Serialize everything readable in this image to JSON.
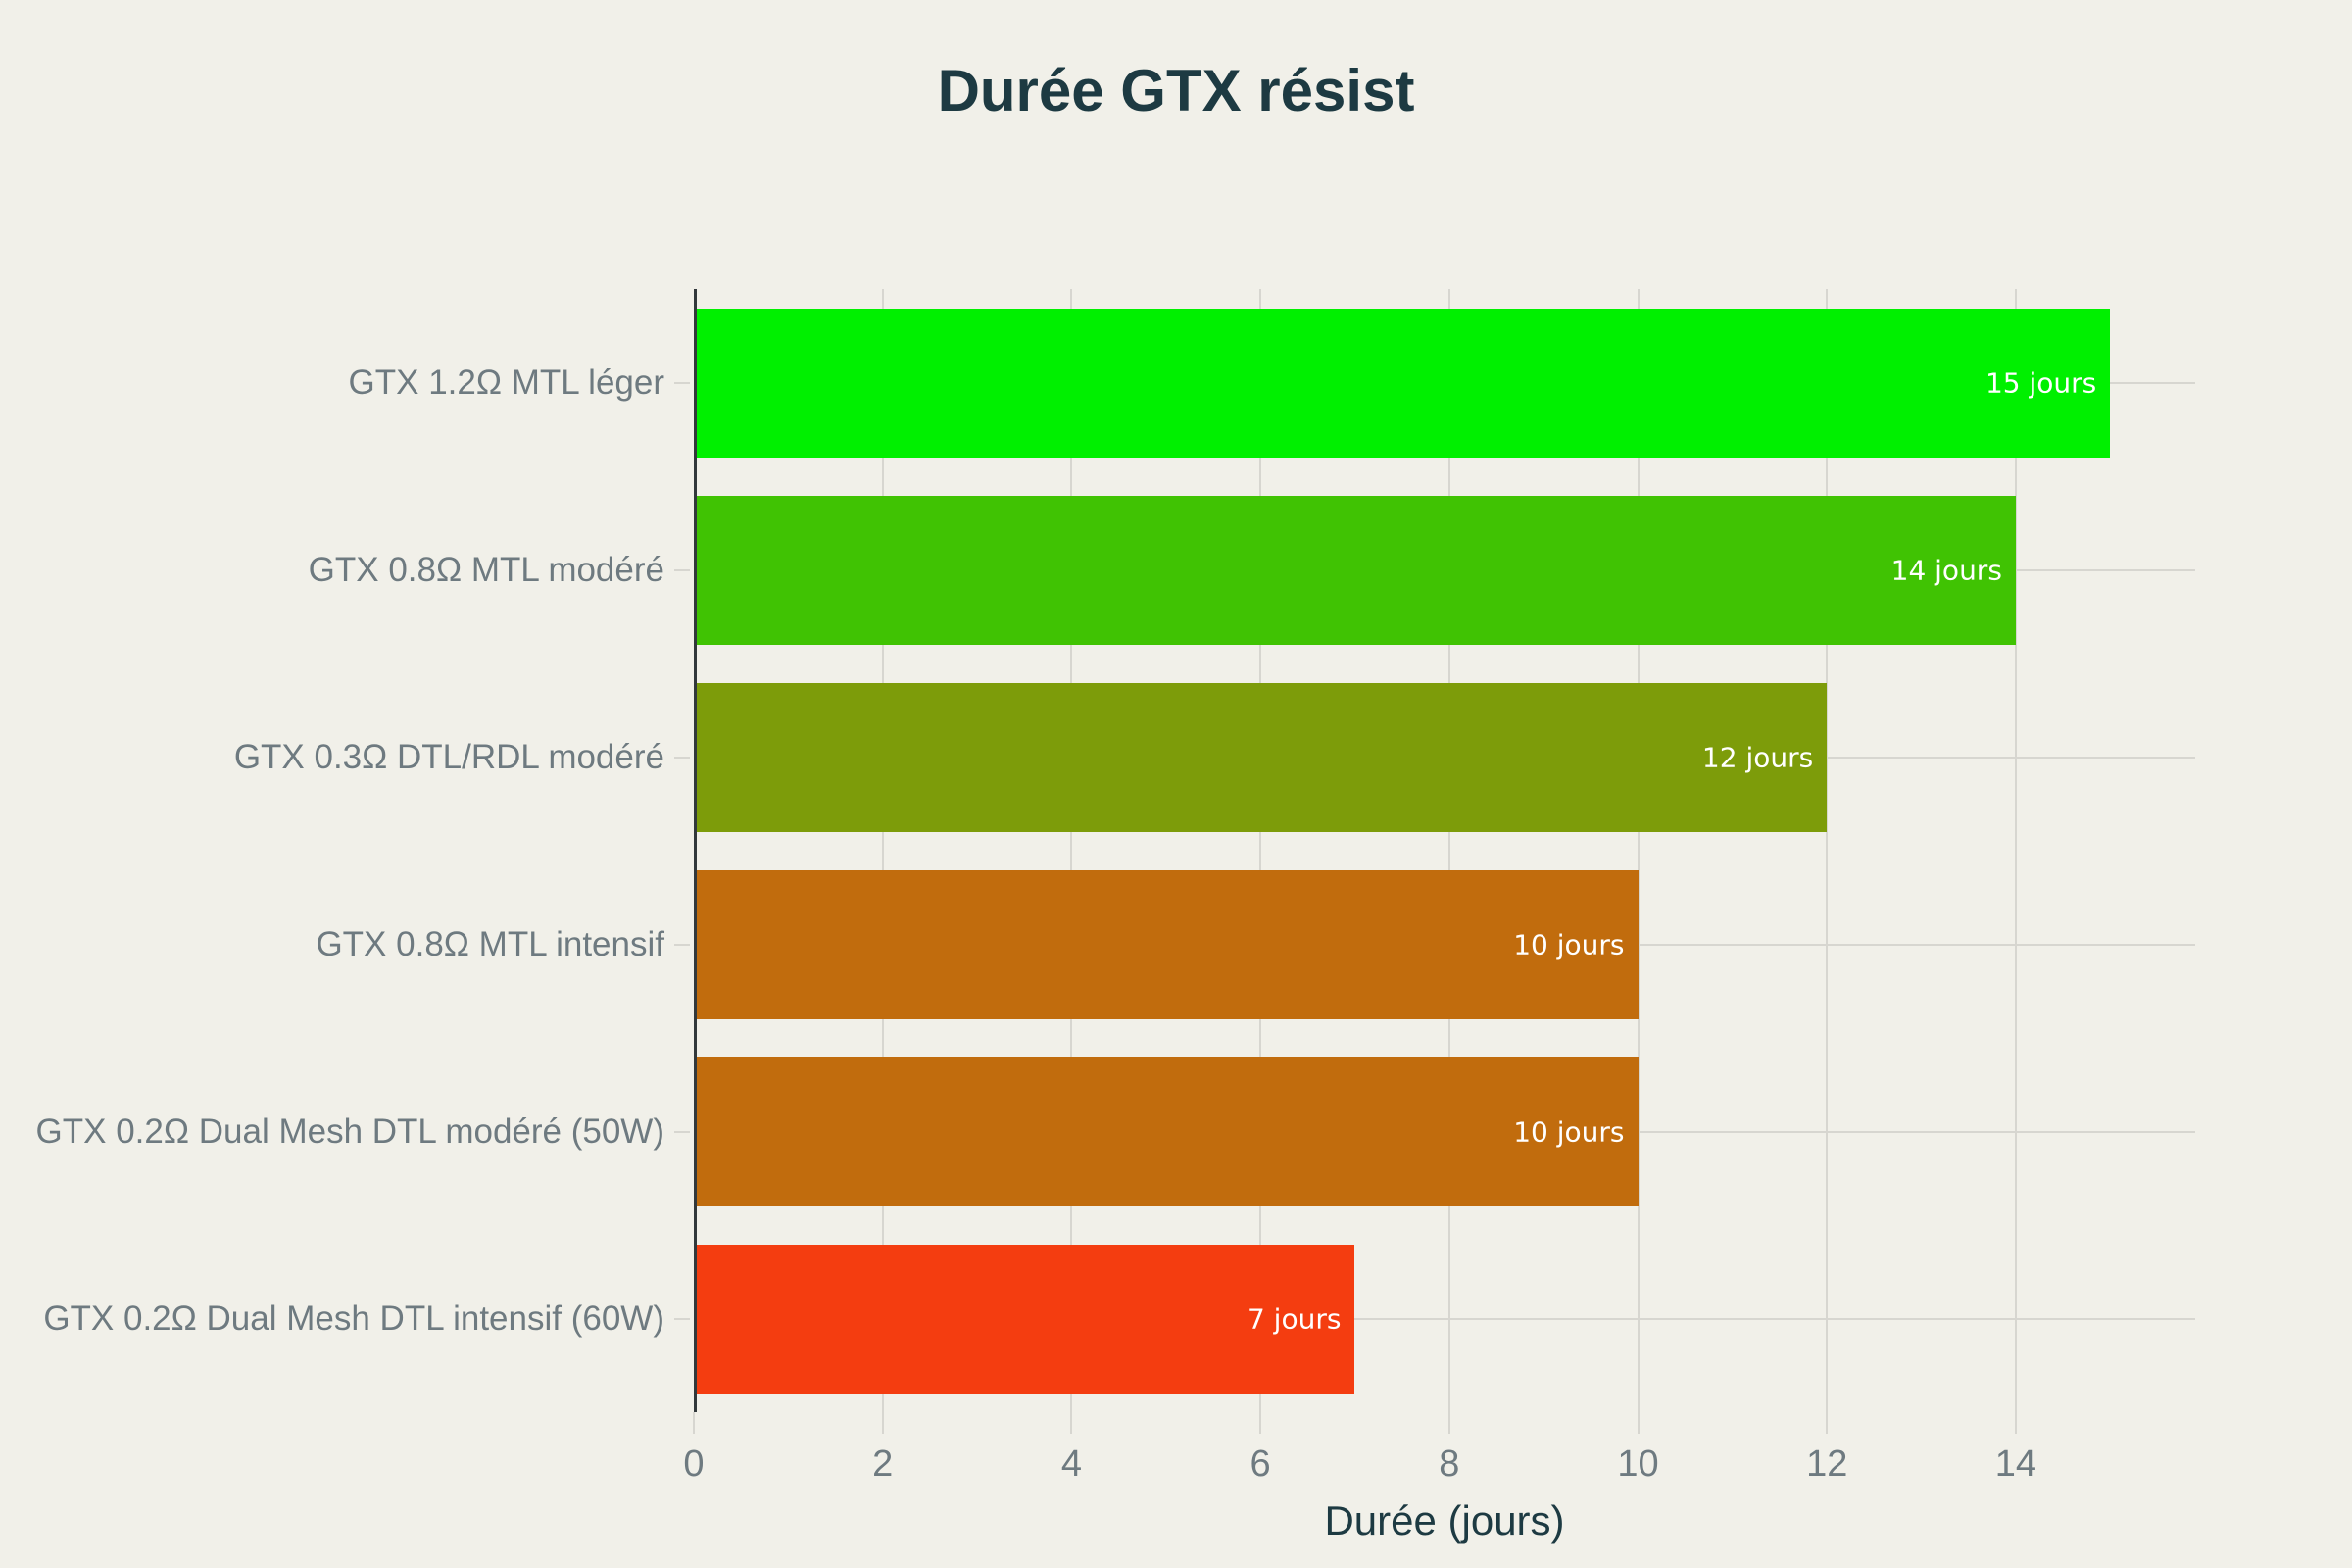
{
  "title": "Durée GTX résist",
  "colors": {
    "background": "#f1f0e9",
    "title_text": "#1d3a42",
    "axis_label_text": "#6e7a80",
    "gridline": "#d7d6d0",
    "zeroline": "#32383b",
    "bar_value_text": "#ffffff"
  },
  "chart_data": {
    "type": "bar",
    "orientation": "horizontal",
    "title": "Durée GTX résist",
    "xlabel": "Durée (jours)",
    "ylabel": "",
    "categories": [
      "GTX 1.2Ω MTL léger",
      "GTX 0.8Ω MTL modéré",
      "GTX 0.3Ω DTL/RDL modéré",
      "GTX 0.8Ω MTL intensif",
      "GTX 0.2Ω Dual Mesh DTL modéré (50W)",
      "GTX 0.2Ω Dual Mesh DTL intensif (60W)"
    ],
    "values": [
      15,
      14,
      12,
      10,
      10,
      7
    ],
    "bar_labels": [
      "15 jours",
      "14 jours",
      "12 jours",
      "10 jours",
      "10 jours",
      "7 jours"
    ],
    "bar_colors": [
      "#00f000",
      "#40c303",
      "#7d9c0a",
      "#c16c0d",
      "#c16c0d",
      "#f43d10"
    ],
    "xticks": [
      0,
      2,
      4,
      6,
      8,
      10,
      12,
      14
    ],
    "xlim": [
      0,
      15.9
    ],
    "grid": true,
    "legend": false
  }
}
